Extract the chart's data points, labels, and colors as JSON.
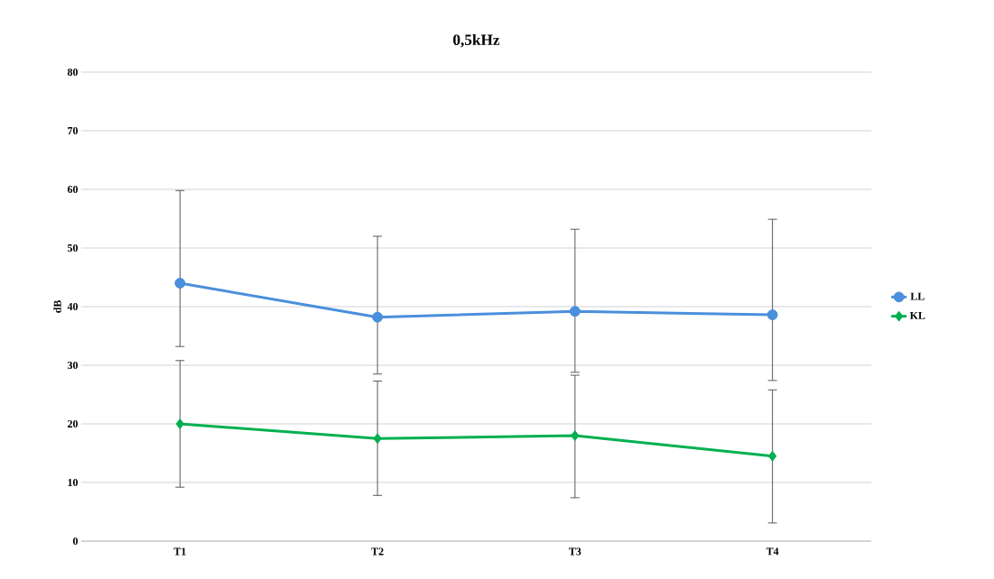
{
  "chart_data": {
    "type": "line",
    "title": "0,5kHz",
    "ylabel": "dB",
    "categories": [
      "T1",
      "T2",
      "T3",
      "T4"
    ],
    "series": [
      {
        "name": "LL",
        "color": "#4a8fdc",
        "marker": "circle",
        "values": [
          44.0,
          38.2,
          39.2,
          38.6
        ],
        "errors": [
          [
            33.2,
            59.8
          ],
          [
            28.5,
            52.0
          ],
          [
            28.8,
            53.2
          ],
          [
            27.4,
            54.9
          ]
        ]
      },
      {
        "name": "KL",
        "color": "#00b050",
        "marker": "diamond",
        "values": [
          20.0,
          17.5,
          18.0,
          14.5
        ],
        "errors": [
          [
            9.2,
            30.8
          ],
          [
            7.8,
            27.3
          ],
          [
            7.4,
            28.3
          ],
          [
            3.1,
            25.8
          ]
        ]
      }
    ],
    "ylim": [
      0,
      80
    ],
    "yticks": [
      0,
      10,
      20,
      30,
      40,
      50,
      60,
      70,
      80
    ],
    "grid": "y",
    "legend": "right",
    "line_style": "solid"
  }
}
